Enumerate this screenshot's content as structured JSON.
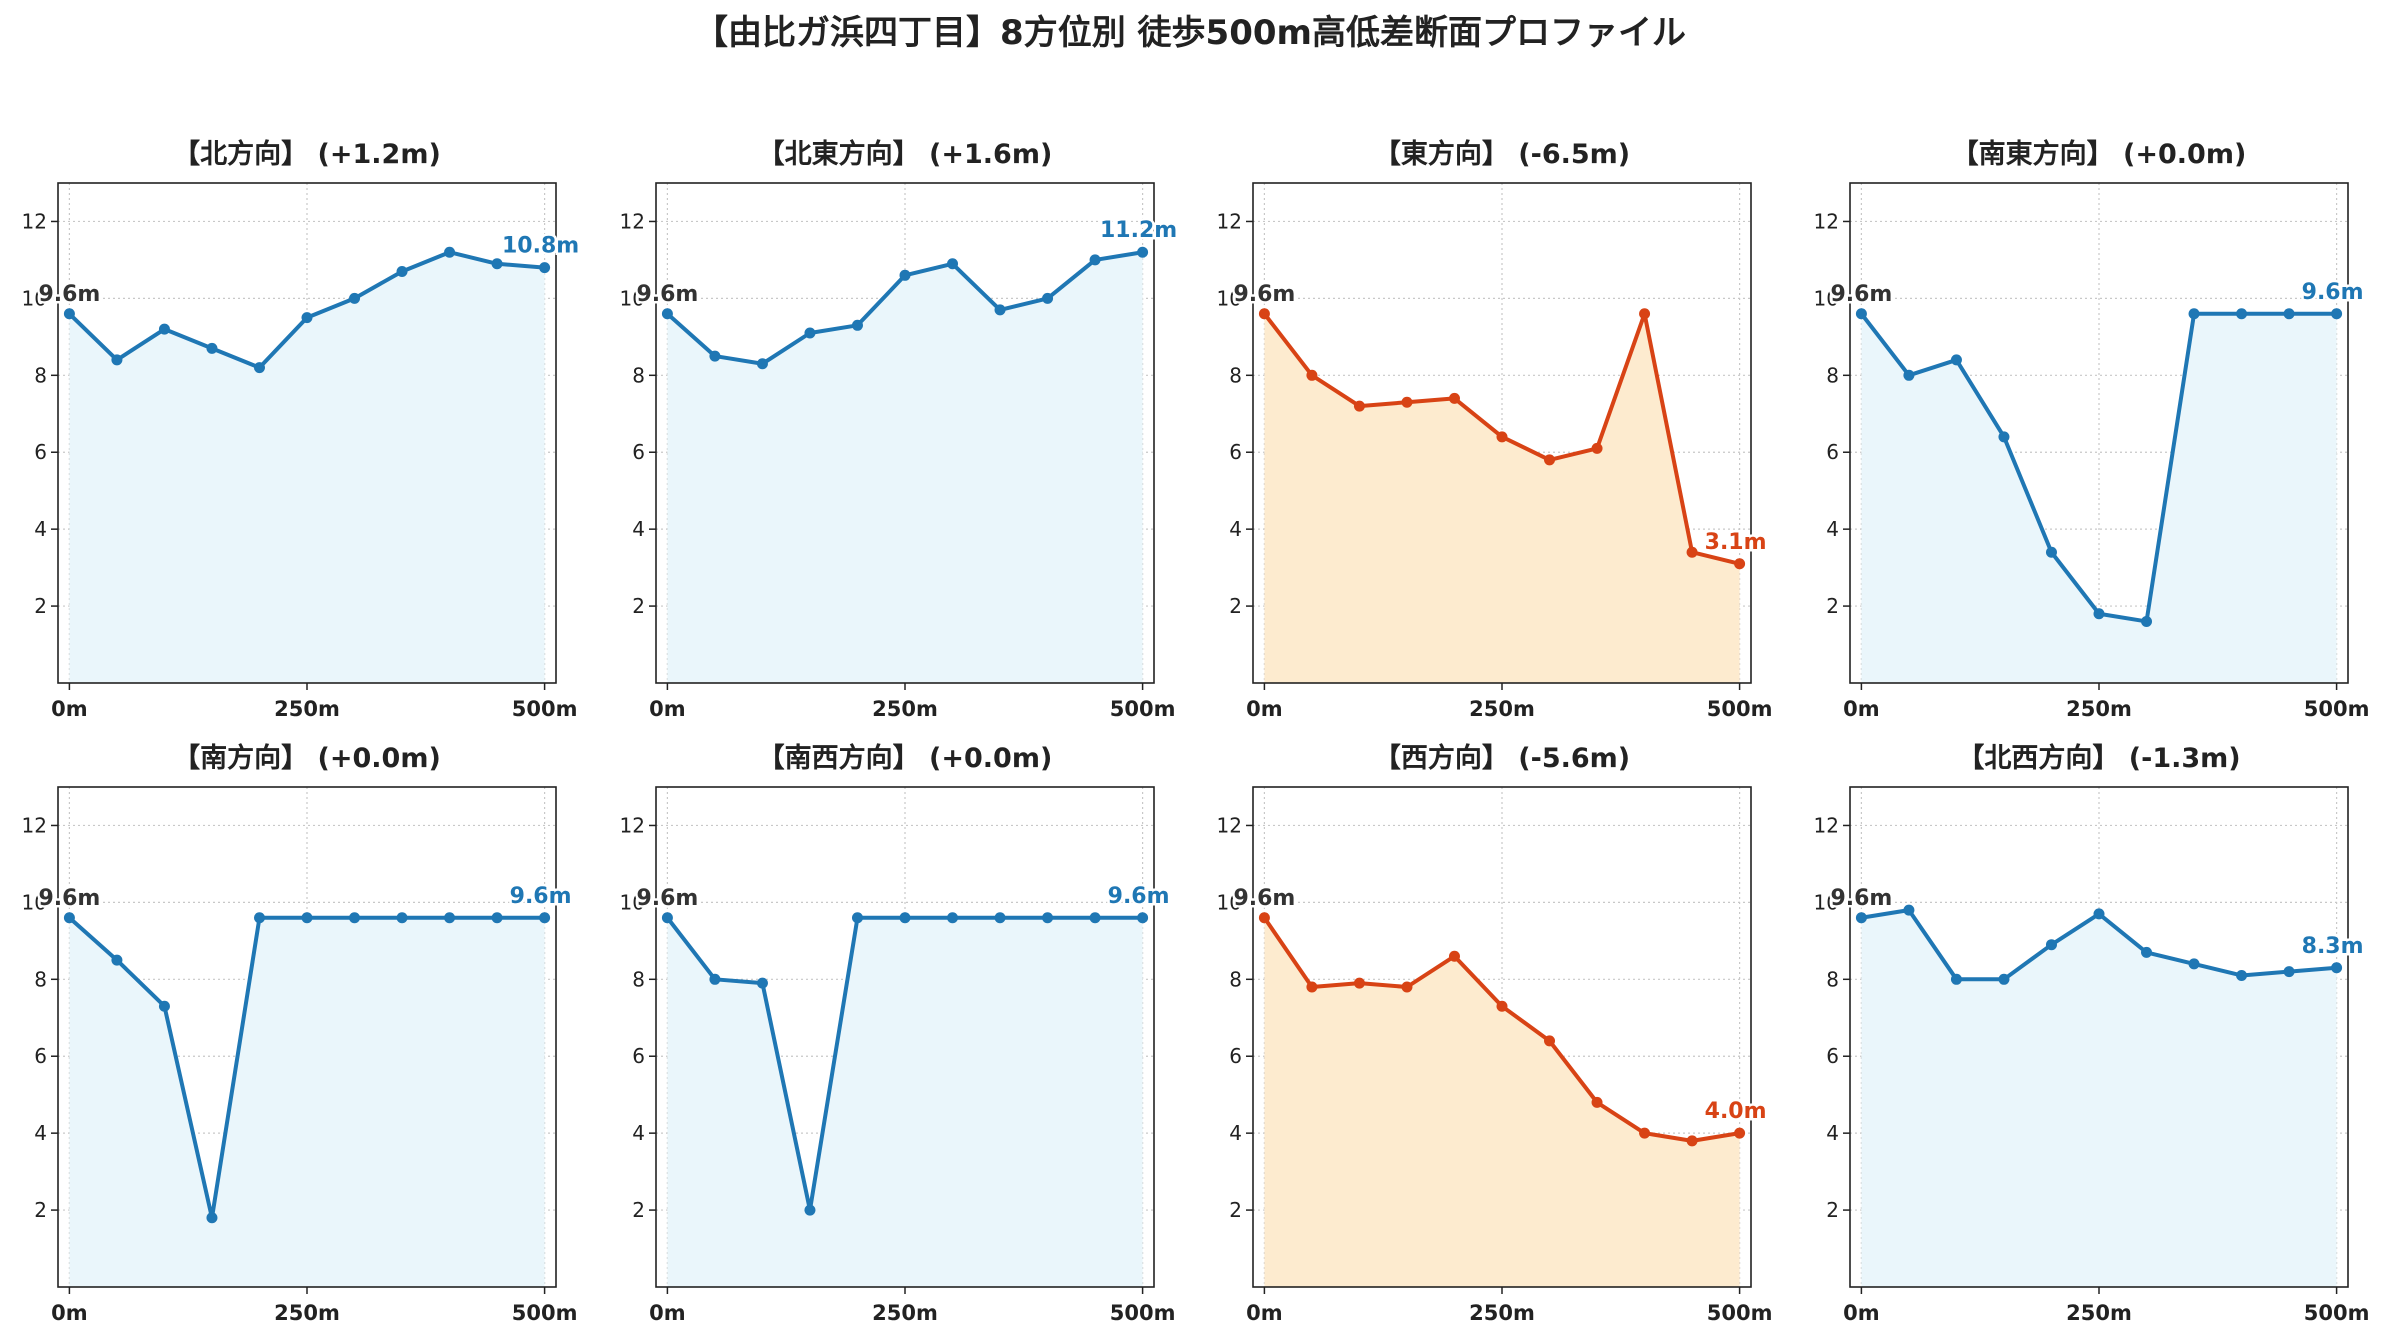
{
  "title": "【由比ガ浜四丁目】8方位別 徒歩500m高低差断面プロファイル",
  "colors": {
    "up_line": "#1f77b4",
    "up_fill": "#eaf6fb",
    "down_line": "#d84315",
    "down_fill": "#fdebcf",
    "start_label": "#333333",
    "grid": "#c8c8c8"
  },
  "chart_data": [
    {
      "type": "line",
      "title": "【北方向】 (+1.2m)",
      "trend": "up",
      "x": [
        0,
        50,
        100,
        150,
        200,
        250,
        300,
        350,
        400,
        450,
        500
      ],
      "values": [
        9.6,
        8.4,
        9.2,
        8.7,
        8.2,
        9.5,
        10.0,
        10.7,
        11.2,
        10.9,
        10.8
      ],
      "start_label": "9.6m",
      "end_label": "10.8m"
    },
    {
      "type": "line",
      "title": "【北東方向】 (+1.6m)",
      "trend": "up",
      "x": [
        0,
        50,
        100,
        150,
        200,
        250,
        300,
        350,
        400,
        450,
        500
      ],
      "values": [
        9.6,
        8.5,
        8.3,
        9.1,
        9.3,
        10.6,
        10.9,
        9.7,
        10.0,
        11.0,
        11.2
      ],
      "start_label": "9.6m",
      "end_label": "11.2m"
    },
    {
      "type": "line",
      "title": "【東方向】 (-6.5m)",
      "trend": "down",
      "x": [
        0,
        50,
        100,
        150,
        200,
        250,
        300,
        350,
        400,
        450,
        500
      ],
      "values": [
        9.6,
        8.0,
        7.2,
        7.3,
        7.4,
        6.4,
        5.8,
        6.1,
        9.6,
        3.4,
        3.1
      ],
      "start_label": "9.6m",
      "end_label": "3.1m"
    },
    {
      "type": "line",
      "title": "【南東方向】 (+0.0m)",
      "trend": "up",
      "x": [
        0,
        50,
        100,
        150,
        200,
        250,
        300,
        350,
        400,
        450,
        500
      ],
      "values": [
        9.6,
        8.0,
        8.4,
        6.4,
        3.4,
        1.8,
        1.6,
        9.6,
        9.6,
        9.6,
        9.6
      ],
      "start_label": "9.6m",
      "end_label": "9.6m"
    },
    {
      "type": "line",
      "title": "【南方向】 (+0.0m)",
      "trend": "up",
      "x": [
        0,
        50,
        100,
        150,
        200,
        250,
        300,
        350,
        400,
        450,
        500
      ],
      "values": [
        9.6,
        8.5,
        7.3,
        1.8,
        9.6,
        9.6,
        9.6,
        9.6,
        9.6,
        9.6,
        9.6
      ],
      "start_label": "9.6m",
      "end_label": "9.6m"
    },
    {
      "type": "line",
      "title": "【南西方向】 (+0.0m)",
      "trend": "up",
      "x": [
        0,
        50,
        100,
        150,
        200,
        250,
        300,
        350,
        400,
        450,
        500
      ],
      "values": [
        9.6,
        8.0,
        7.9,
        2.0,
        9.6,
        9.6,
        9.6,
        9.6,
        9.6,
        9.6,
        9.6
      ],
      "start_label": "9.6m",
      "end_label": "9.6m"
    },
    {
      "type": "line",
      "title": "【西方向】 (-5.6m)",
      "trend": "down",
      "x": [
        0,
        50,
        100,
        150,
        200,
        250,
        300,
        350,
        400,
        450,
        500
      ],
      "values": [
        9.6,
        7.8,
        7.9,
        7.8,
        8.6,
        7.3,
        6.4,
        4.8,
        4.0,
        3.8,
        4.0
      ],
      "start_label": "9.6m",
      "end_label": "4.0m"
    },
    {
      "type": "line",
      "title": "【北西方向】 (-1.3m)",
      "trend": "up",
      "x": [
        0,
        50,
        100,
        150,
        200,
        250,
        300,
        350,
        400,
        450,
        500
      ],
      "values": [
        9.6,
        9.8,
        8.0,
        8.0,
        8.9,
        9.7,
        8.7,
        8.4,
        8.1,
        8.2,
        8.3
      ],
      "start_label": "9.6m",
      "end_label": "8.3m"
    }
  ],
  "axes": {
    "ylim": [
      0,
      13
    ],
    "yticks": [
      2,
      4,
      6,
      8,
      10,
      12
    ],
    "xlim": [
      -12,
      512
    ],
    "xticks": [
      0,
      250,
      500
    ],
    "xtick_labels": [
      "0m",
      "250m",
      "500m"
    ],
    "grid": true,
    "y_ticks_bold": false,
    "x_ticks_bold": true
  }
}
